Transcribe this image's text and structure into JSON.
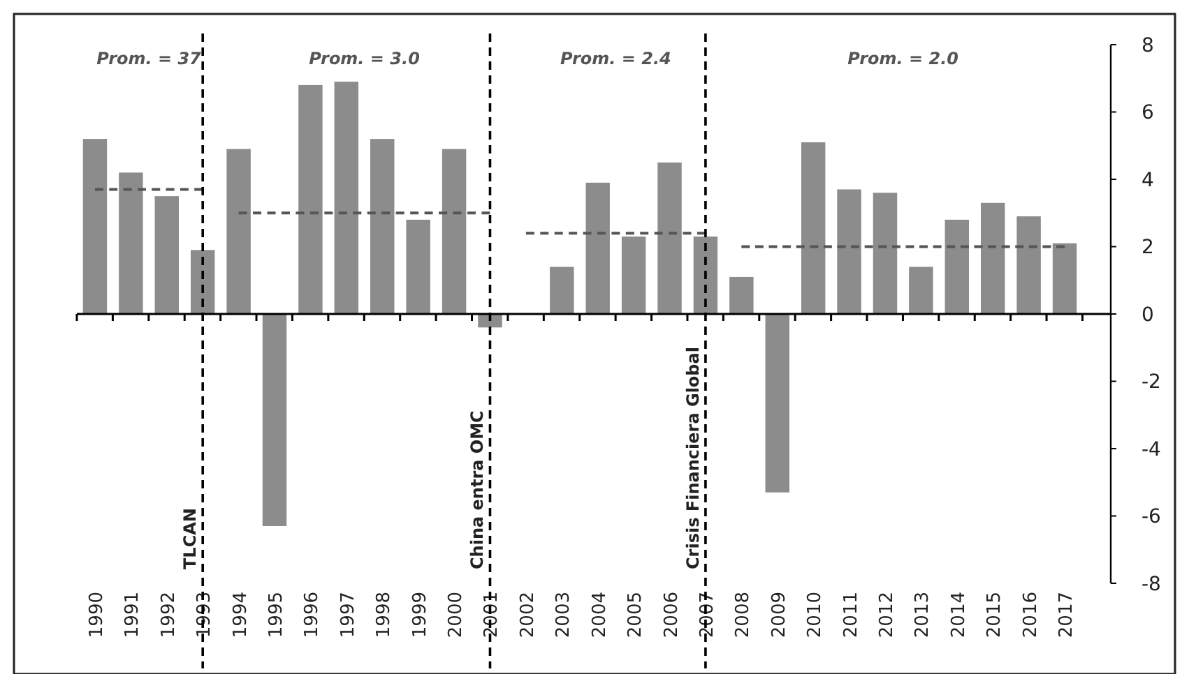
{
  "chart_data": {
    "type": "bar",
    "categories": [
      "1990",
      "1991",
      "1992",
      "1993",
      "1994",
      "1995",
      "1996",
      "1997",
      "1998",
      "1999",
      "2000",
      "2001",
      "2002",
      "2003",
      "2004",
      "2005",
      "2006",
      "2007",
      "2008",
      "2009",
      "2010",
      "2011",
      "2012",
      "2013",
      "2014",
      "2015",
      "2016",
      "2017"
    ],
    "series": [
      {
        "color": "#8c8c8c",
        "values": [
          5.2,
          4.2,
          3.5,
          1.9,
          4.9,
          -6.3,
          6.8,
          6.9,
          5.2,
          2.8,
          4.9,
          -0.4,
          0.0,
          1.4,
          3.9,
          2.3,
          4.5,
          2.3,
          1.1,
          -5.3,
          5.1,
          3.7,
          3.6,
          1.4,
          2.8,
          3.3,
          2.9,
          2.1
        ]
      },
      {
        "type": "line",
        "color": "#555555",
        "line_style": "dashed",
        "values": [
          3.7,
          3.7,
          3.7,
          3.7,
          null,
          null,
          null,
          null,
          null,
          null,
          null,
          null,
          null,
          null,
          null,
          null,
          null,
          null,
          null,
          null,
          null,
          null,
          null,
          null,
          null,
          null,
          null,
          null
        ]
      },
      {
        "type": "line",
        "color": "#555555",
        "line_style": "dashed",
        "values": [
          null,
          null,
          null,
          null,
          3.0,
          3.0,
          3.0,
          3.0,
          3.0,
          3.0,
          3.0,
          3.0,
          null,
          null,
          null,
          null,
          null,
          null,
          null,
          null,
          null,
          null,
          null,
          null,
          null,
          null,
          null,
          null
        ]
      },
      {
        "type": "line",
        "color": "#555555",
        "line_style": "dashed",
        "values": [
          null,
          null,
          null,
          null,
          null,
          null,
          null,
          null,
          null,
          null,
          null,
          null,
          2.4,
          2.4,
          2.4,
          2.4,
          2.4,
          2.4,
          null,
          null,
          null,
          null,
          null,
          null,
          null,
          null,
          null,
          null
        ]
      },
      {
        "type": "line",
        "color": "#555555",
        "line_style": "dashed",
        "values": [
          null,
          null,
          null,
          null,
          null,
          null,
          null,
          null,
          null,
          null,
          null,
          null,
          null,
          null,
          null,
          null,
          null,
          null,
          2.0,
          2.0,
          2.0,
          2.0,
          2.0,
          2.0,
          2.0,
          2.0,
          2.0,
          2.0
        ]
      }
    ],
    "ylim": [
      -8,
      8
    ],
    "yticks": [
      -8,
      -6,
      -4,
      -2,
      0,
      2,
      4,
      6,
      8
    ],
    "ref_lines": [
      {
        "axis": "x",
        "value": "1993",
        "label": "TLCAN",
        "line_style": "dashed",
        "color": "#000000"
      },
      {
        "axis": "x",
        "value": "2001",
        "label": "China entra OMC",
        "line_style": "dashed",
        "color": "#000000"
      },
      {
        "axis": "x",
        "value": "2007",
        "label": "Crisis Financiera Global",
        "line_style": "dashed",
        "color": "#000000"
      }
    ],
    "annotations": [
      "Prom. = 37",
      "Prom. = 3.0",
      "Prom. = 2.4",
      "Prom. = 2.0"
    ]
  }
}
